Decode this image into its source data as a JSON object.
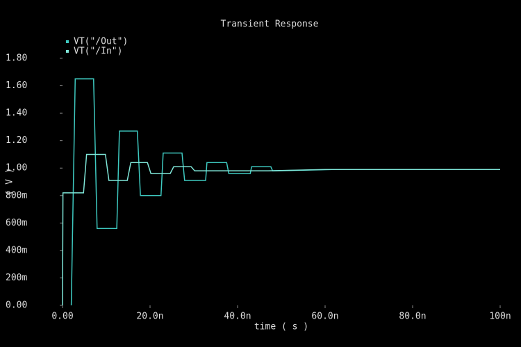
{
  "chart_data": {
    "type": "line",
    "title": "Transient Response",
    "x_label": "time ( s )",
    "y_label": "( V )",
    "xlim": [
      0,
      1e-07
    ],
    "ylim": [
      0,
      1.8
    ],
    "xticks": [
      {
        "value": 0,
        "label": "0.00"
      },
      {
        "value": 2e-08,
        "label": "20.0n"
      },
      {
        "value": 4e-08,
        "label": "40.0n"
      },
      {
        "value": 6e-08,
        "label": "60.0n"
      },
      {
        "value": 8e-08,
        "label": "80.0n"
      },
      {
        "value": 1e-07,
        "label": "100n"
      }
    ],
    "yticks": [
      {
        "value": 0,
        "label": "0.00"
      },
      {
        "value": 0.2,
        "label": "200m"
      },
      {
        "value": 0.4,
        "label": "400m"
      },
      {
        "value": 0.6,
        "label": "600m"
      },
      {
        "value": 0.8,
        "label": "800m"
      },
      {
        "value": 1,
        "label": "1.00"
      },
      {
        "value": 1.2,
        "label": "1.20"
      },
      {
        "value": 1.4,
        "label": "1.40"
      },
      {
        "value": 1.6,
        "label": "1.60"
      },
      {
        "value": 1.8,
        "label": "1.80"
      }
    ],
    "series": [
      {
        "name": "VT(\"/Out\")",
        "color": "#3ec9c0",
        "x": [
          2e-09,
          2.9e-09,
          7.1e-09,
          7.9e-09,
          1.24e-08,
          1.3e-08,
          1.71e-08,
          1.78e-08,
          2.25e-08,
          2.3e-08,
          2.73e-08,
          2.79e-08,
          3.27e-08,
          3.3e-08,
          3.75e-08,
          3.8e-08,
          4.29e-08,
          4.32e-08,
          4.76e-08,
          4.8e-08,
          5.5e-08,
          6.2e-08,
          1e-07
        ],
        "values": [
          0,
          1.65,
          1.65,
          0.56,
          0.56,
          1.27,
          1.27,
          0.8,
          0.8,
          1.11,
          1.11,
          0.91,
          0.91,
          1.04,
          1.04,
          0.96,
          0.96,
          1.01,
          1.01,
          0.98,
          0.985,
          0.99,
          0.99
        ]
      },
      {
        "name": "VT(\"/In\")",
        "color": "#7fe6d8",
        "x": [
          0,
          1e-10,
          4.8e-09,
          5.5e-09,
          9.8e-09,
          1.06e-08,
          1.48e-08,
          1.56e-08,
          1.94e-08,
          2.02e-08,
          2.46e-08,
          2.54e-08,
          2.94e-08,
          3.02e-08,
          4.7e-08,
          6e-08,
          1e-07
        ],
        "values": [
          0,
          0.82,
          0.82,
          1.1,
          1.1,
          0.91,
          0.91,
          1.04,
          1.04,
          0.96,
          0.96,
          1.01,
          1.01,
          0.98,
          0.98,
          0.99,
          0.99
        ]
      }
    ]
  }
}
